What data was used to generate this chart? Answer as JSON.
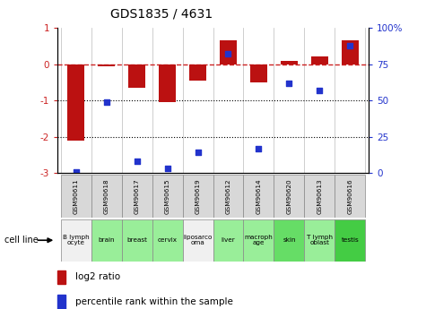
{
  "title": "GDS1835 / 4631",
  "samples": [
    "GSM90611",
    "GSM90618",
    "GSM90617",
    "GSM90615",
    "GSM90619",
    "GSM90612",
    "GSM90614",
    "GSM90620",
    "GSM90613",
    "GSM90616"
  ],
  "cell_lines": [
    "B lymph\nocyte",
    "brain",
    "breast",
    "cervix",
    "liposarco\noma",
    "liver",
    "macroph\nage",
    "skin",
    "T lymph\noblast",
    "testis"
  ],
  "cell_line_colors": [
    "#f0f0f0",
    "#99ee99",
    "#99ee99",
    "#99ee99",
    "#f0f0f0",
    "#99ee99",
    "#99ee99",
    "#66dd66",
    "#99ee99",
    "#44cc44"
  ],
  "log2_ratio": [
    -2.1,
    -0.05,
    -0.65,
    -1.05,
    -0.45,
    0.65,
    -0.5,
    0.1,
    0.2,
    0.65
  ],
  "percentile_rank": [
    1,
    49,
    8,
    3,
    14,
    82,
    17,
    62,
    57,
    88
  ],
  "ylim_left": [
    -3,
    1
  ],
  "ylim_right": [
    0,
    100
  ],
  "bar_color": "#bb1111",
  "dot_color": "#2233cc",
  "dashed_color": "#cc2222",
  "bar_width": 0.55,
  "legend_bar_label": "log2 ratio",
  "legend_dot_label": "percentile rank within the sample",
  "cell_line_label": "cell line"
}
